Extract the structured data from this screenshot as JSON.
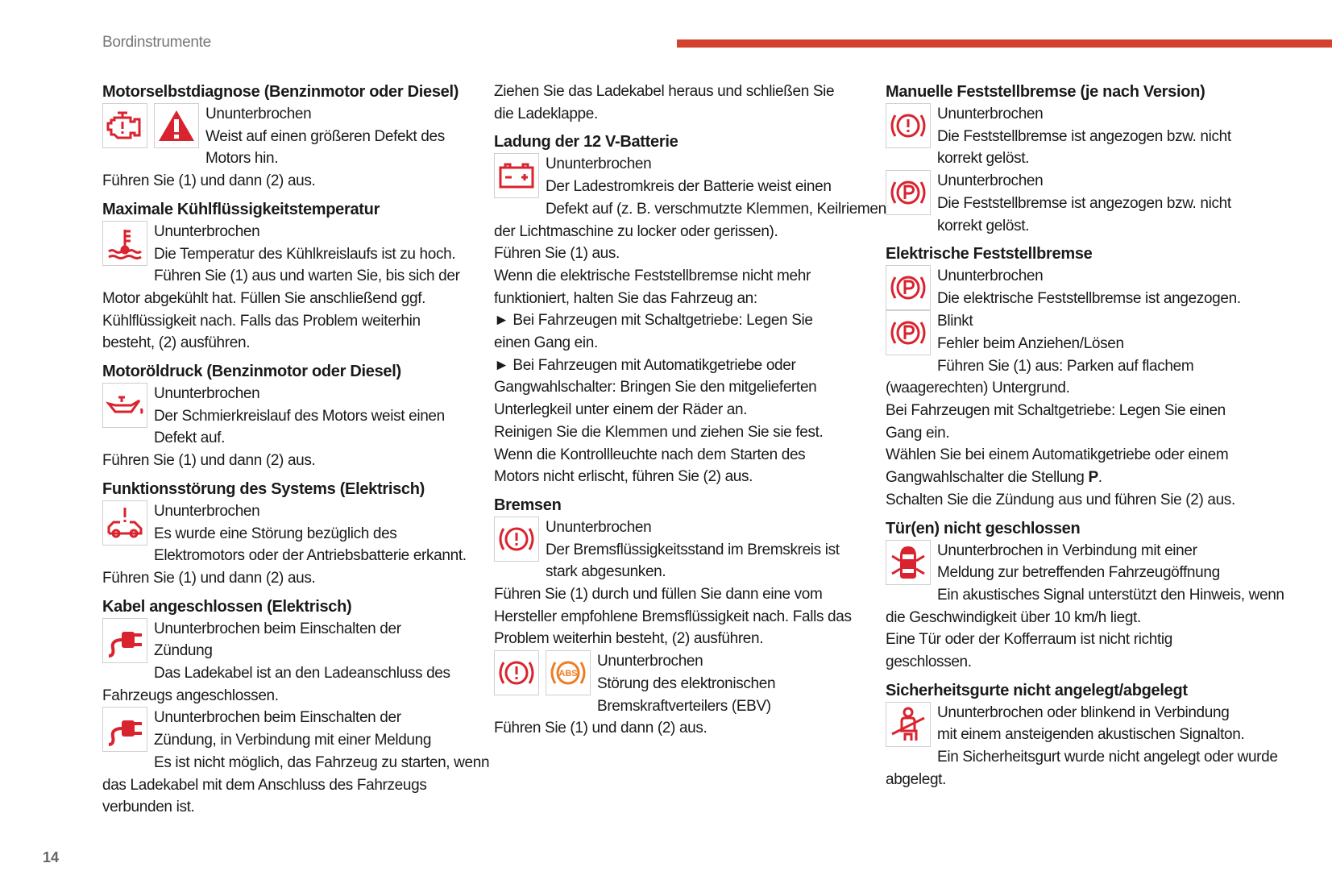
{
  "header": {
    "section": "Bordinstrumente",
    "page_number": "14",
    "accent": "#d5412f"
  },
  "icon_color": "#d9232e",
  "abs_color": "#ee7d22",
  "columns": [
    {
      "items": [
        {
          "h": "Motorselbstdiagnose (Benzinmotor oder Diesel)"
        },
        {
          "icons": [
            "engine-icon",
            "warning-triangle-icon"
          ],
          "lines": [
            "Ununterbrochen",
            "Weist auf einen größeren Defekt des",
            "Motors hin.",
            "Führen Sie (1) und dann (2) aus."
          ]
        },
        {
          "h": "Maximale Kühlflüssigkeitstemperatur"
        },
        {
          "icons": [
            "coolant-temperature-icon"
          ],
          "lines": [
            "Ununterbrochen",
            "Die Temperatur des Kühlkreislaufs ist zu hoch.",
            "Führen Sie (1) aus und warten Sie, bis sich der",
            "Motor abgekühlt hat. Füllen Sie anschließend ggf.",
            "Kühlflüssigkeit nach. Falls das Problem weiterhin",
            "besteht, (2) ausführen."
          ]
        },
        {
          "h": "Motoröldruck (Benzinmotor oder Diesel)"
        },
        {
          "icons": [
            "oil-pressure-icon"
          ],
          "lines": [
            "Ununterbrochen",
            "Der Schmierkreislauf des Motors weist einen",
            "Defekt auf.",
            "Führen Sie (1) und dann (2) aus."
          ]
        },
        {
          "h": "Funktionsstörung des Systems (Elektrisch)"
        },
        {
          "icons": [
            "electric-system-fault-icon"
          ],
          "lines": [
            "Ununterbrochen",
            "Es wurde eine Störung bezüglich des",
            "Elektromotors oder der Antriebsbatterie erkannt.",
            "Führen Sie (1) und dann (2) aus."
          ]
        },
        {
          "h": "Kabel angeschlossen (Elektrisch)"
        },
        {
          "icons": [
            "charging-plug-icon"
          ],
          "lines": [
            "Ununterbrochen beim Einschalten der",
            "Zündung",
            "Das Ladekabel ist an den Ladeanschluss des",
            "Fahrzeugs angeschlossen."
          ]
        },
        {
          "icons": [
            "charging-plug-icon"
          ],
          "lines": [
            "Ununterbrochen beim Einschalten der",
            "Zündung, in Verbindung mit einer Meldung",
            "Es ist nicht möglich, das Fahrzeug zu starten, wenn",
            "das Ladekabel mit dem Anschluss des Fahrzeugs",
            "verbunden ist."
          ]
        }
      ]
    },
    {
      "items": [
        {
          "lines": [
            "Ziehen Sie das Ladekabel heraus und schließen Sie",
            "die Ladeklappe."
          ]
        },
        {
          "h": "Ladung der 12 V-Batterie"
        },
        {
          "icons": [
            "battery-icon"
          ],
          "lines": [
            "Ununterbrochen",
            "Der Ladestromkreis der Batterie weist einen",
            "Defekt auf (z. B. verschmutzte Klemmen, Keilriemen",
            "der Lichtmaschine zu locker oder gerissen).",
            "Führen Sie (1) aus.",
            "Wenn die elektrische Feststellbremse nicht mehr",
            "funktioniert, halten Sie das Fahrzeug an:",
            "► Bei Fahrzeugen mit Schaltgetriebe: Legen Sie",
            "einen Gang ein.",
            "► Bei Fahrzeugen mit Automatikgetriebe oder",
            "Gangwahlschalter: Bringen Sie den mitgelieferten",
            "Unterlegkeil unter einem der Räder an.",
            "Reinigen Sie die Klemmen und ziehen Sie sie fest.",
            "Wenn die Kontrollleuchte nach dem Starten des",
            "Motors nicht erlischt, führen Sie (2) aus."
          ]
        },
        {
          "h": "Bremsen"
        },
        {
          "icons": [
            "brake-warning-icon"
          ],
          "lines": [
            "Ununterbrochen",
            "Der Bremsflüssigkeitsstand im Bremskreis ist",
            "stark abgesunken.",
            "Führen Sie (1) durch und füllen Sie dann eine vom",
            "Hersteller empfohlene Bremsflüssigkeit nach. Falls das",
            "Problem weiterhin besteht, (2) ausführen."
          ]
        },
        {
          "icons": [
            "brake-warning-icon",
            "abs-icon"
          ],
          "lines": [
            "Ununterbrochen",
            "Störung des elektronischen",
            "Bremskraftverteilers (EBV)",
            "Führen Sie (1) und dann (2) aus."
          ]
        }
      ]
    },
    {
      "items": [
        {
          "h": "Manuelle Feststellbremse (je nach Version)"
        },
        {
          "icons": [
            "brake-warning-icon"
          ],
          "lines": [
            "Ununterbrochen",
            "Die Feststellbremse ist angezogen bzw. nicht",
            "korrekt gelöst."
          ]
        },
        {
          "icons": [
            "parking-brake-icon"
          ],
          "lines": [
            "Ununterbrochen",
            "Die Feststellbremse ist angezogen bzw. nicht",
            "korrekt gelöst."
          ]
        },
        {
          "h": "Elektrische Feststellbremse"
        },
        {
          "icons": [
            "parking-brake-icon"
          ],
          "lines": [
            "Ununterbrochen",
            "Die elektrische Feststellbremse ist angezogen."
          ]
        },
        {
          "icons": [
            "parking-brake-icon"
          ],
          "lines": [
            "Blinkt",
            "Fehler beim Anziehen/Lösen",
            "Führen Sie (1) aus: Parken auf flachem",
            "(waagerechten) Untergrund.",
            "Bei Fahrzeugen mit Schaltgetriebe: Legen Sie einen",
            "Gang ein.",
            "Wählen Sie bei einem Automatikgetriebe oder einem"
          ]
        },
        {
          "lines": [
            "Gangwahlschalter die Stellung |P|.",
            "Schalten Sie die Zündung aus und führen Sie (2) aus."
          ]
        },
        {
          "h": "Tür(en) nicht geschlossen"
        },
        {
          "icons": [
            "door-open-icon"
          ],
          "lines": [
            "Ununterbrochen in Verbindung mit einer",
            "Meldung zur betreffenden Fahrzeugöffnung",
            "Ein akustisches Signal unterstützt den Hinweis, wenn",
            "die Geschwindigkeit über 10 km/h liegt.",
            "Eine Tür oder der Kofferraum ist nicht richtig",
            "geschlossen."
          ]
        },
        {
          "h": "Sicherheitsgurte nicht angelegt/abgelegt"
        },
        {
          "icons": [
            "seatbelt-icon"
          ],
          "lines": [
            "Ununterbrochen oder blinkend in Verbindung",
            "mit einem ansteigenden akustischen Signalton.",
            "Ein Sicherheitsgurt wurde nicht angelegt oder wurde",
            "abgelegt."
          ]
        }
      ]
    }
  ]
}
